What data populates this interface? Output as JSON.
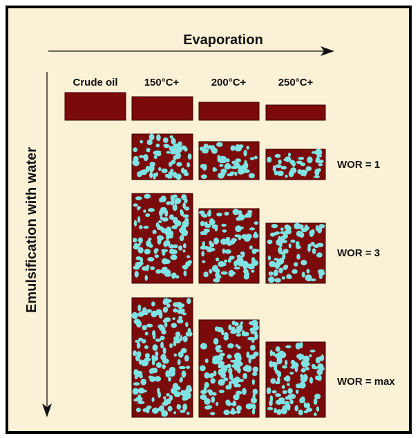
{
  "colors": {
    "background": "#fbf1d6",
    "oil": "#7b0a0a",
    "water": "#7fe3e3",
    "ink": "#111111"
  },
  "labels": {
    "horizontal_axis": "Evaporation",
    "vertical_axis": "Emulsification with water"
  },
  "columns": [
    "Crude oil",
    "150°C+",
    "200°C+",
    "250°C+"
  ],
  "rows": [
    {
      "label": "WOR = 1"
    },
    {
      "label": "WOR = 3"
    },
    {
      "label": "WOR = max"
    }
  ]
}
